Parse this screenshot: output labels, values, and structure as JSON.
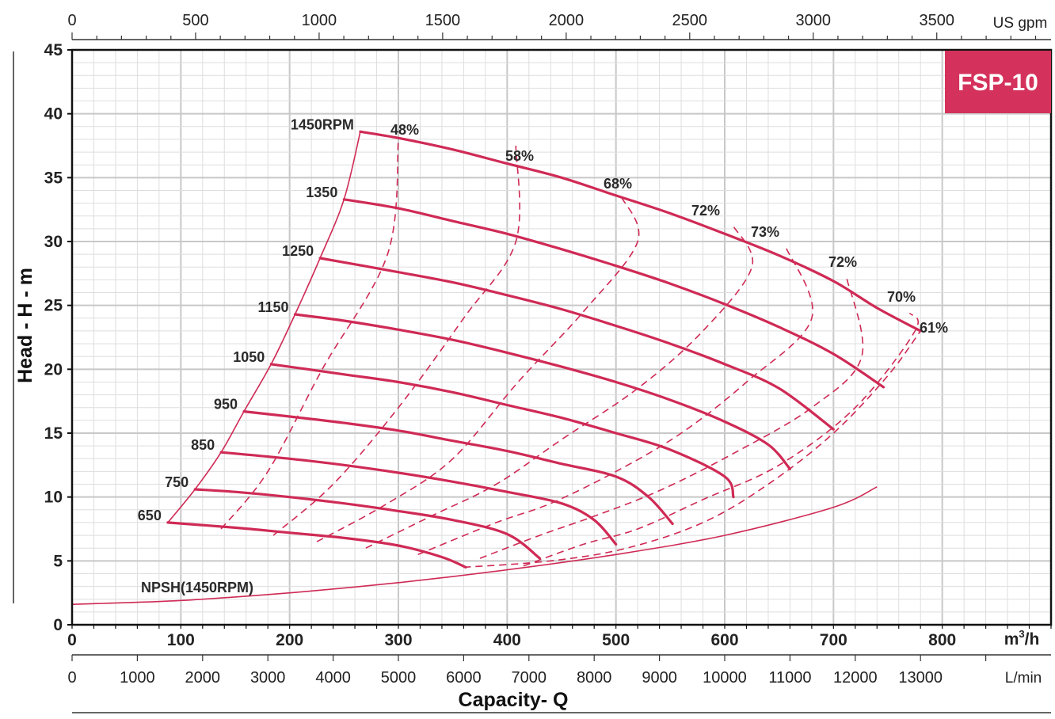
{
  "model_badge": "FSP-10",
  "colors": {
    "curve": "#cf2a55",
    "badge_bg": "#d4325c",
    "badge_text": "#ffffff",
    "grid_major": "#c8c8c8",
    "grid_minor": "#dedede",
    "frame": "#111111"
  },
  "chart_data": {
    "type": "line",
    "title": "",
    "ylabel": "Head - H - m",
    "xlabel": "Capacity- Q",
    "x_unit": "m³/h",
    "x_unit_base": "m",
    "x_unit_sup": "3",
    "x_unit_tail": "/h",
    "x_unit_top": "US gpm",
    "x_unit_bottom": "L/min",
    "xlim": [
      0,
      900
    ],
    "ylim": [
      0,
      45
    ],
    "y_ticks": [
      "0",
      "5",
      "10",
      "15",
      "20",
      "25",
      "30",
      "35",
      "40",
      "45"
    ],
    "x_ticks_m3h": [
      "0",
      "100",
      "200",
      "300",
      "400",
      "500",
      "600",
      "700",
      "800"
    ],
    "x_ticks_usgpm": [
      "0",
      "500",
      "1000",
      "1500",
      "2000",
      "2500",
      "3000",
      "3500"
    ],
    "x_ticks_lmin": [
      "0",
      "1000",
      "2000",
      "3000",
      "4000",
      "5000",
      "6000",
      "7000",
      "8000",
      "9000",
      "10000",
      "11000",
      "12000",
      "13000"
    ],
    "speed_curves": [
      {
        "label": "1450RPM",
        "rpm": 1450,
        "points": [
          [
            265,
            38.6
          ],
          [
            300,
            38.1
          ],
          [
            350,
            37.2
          ],
          [
            400,
            36.1
          ],
          [
            450,
            35.0
          ],
          [
            500,
            33.6
          ],
          [
            550,
            32.2
          ],
          [
            600,
            30.6
          ],
          [
            650,
            28.9
          ],
          [
            700,
            26.9
          ],
          [
            740,
            24.8
          ],
          [
            780,
            23.0
          ]
        ]
      },
      {
        "label": "1350",
        "rpm": 1350,
        "points": [
          [
            250,
            33.3
          ],
          [
            300,
            32.6
          ],
          [
            350,
            31.6
          ],
          [
            400,
            30.6
          ],
          [
            450,
            29.4
          ],
          [
            500,
            28.1
          ],
          [
            550,
            26.7
          ],
          [
            600,
            25.1
          ],
          [
            650,
            23.3
          ],
          [
            700,
            21.2
          ],
          [
            746,
            18.6
          ]
        ]
      },
      {
        "label": "1250",
        "rpm": 1250,
        "points": [
          [
            228,
            28.7
          ],
          [
            300,
            27.6
          ],
          [
            350,
            26.8
          ],
          [
            400,
            25.8
          ],
          [
            450,
            24.7
          ],
          [
            500,
            23.4
          ],
          [
            550,
            22.0
          ],
          [
            600,
            20.4
          ],
          [
            650,
            18.5
          ],
          [
            700,
            15.3
          ]
        ]
      },
      {
        "label": "1150",
        "rpm": 1150,
        "points": [
          [
            205,
            24.3
          ],
          [
            250,
            23.8
          ],
          [
            300,
            23.1
          ],
          [
            350,
            22.3
          ],
          [
            400,
            21.3
          ],
          [
            450,
            20.2
          ],
          [
            500,
            19.0
          ],
          [
            550,
            17.6
          ],
          [
            600,
            15.9
          ],
          [
            640,
            14.1
          ],
          [
            660,
            12.2
          ]
        ]
      },
      {
        "label": "1050",
        "rpm": 1050,
        "points": [
          [
            183,
            20.4
          ],
          [
            250,
            19.6
          ],
          [
            300,
            19.0
          ],
          [
            350,
            18.2
          ],
          [
            400,
            17.2
          ],
          [
            450,
            16.2
          ],
          [
            500,
            15.0
          ],
          [
            550,
            13.7
          ],
          [
            600,
            11.6
          ],
          [
            608,
            10.0
          ]
        ]
      },
      {
        "label": "950",
        "rpm": 950,
        "points": [
          [
            158,
            16.7
          ],
          [
            200,
            16.3
          ],
          [
            250,
            15.8
          ],
          [
            300,
            15.2
          ],
          [
            350,
            14.4
          ],
          [
            400,
            13.6
          ],
          [
            450,
            12.6
          ],
          [
            500,
            11.6
          ],
          [
            530,
            10.0
          ],
          [
            552,
            7.9
          ]
        ]
      },
      {
        "label": "850",
        "rpm": 850,
        "points": [
          [
            137,
            13.5
          ],
          [
            200,
            13.0
          ],
          [
            250,
            12.5
          ],
          [
            300,
            11.9
          ],
          [
            350,
            11.2
          ],
          [
            400,
            10.4
          ],
          [
            450,
            9.5
          ],
          [
            480,
            8.2
          ],
          [
            500,
            6.3
          ]
        ]
      },
      {
        "label": "750",
        "rpm": 750,
        "points": [
          [
            113,
            10.6
          ],
          [
            150,
            10.4
          ],
          [
            200,
            10.0
          ],
          [
            250,
            9.5
          ],
          [
            300,
            8.9
          ],
          [
            350,
            8.2
          ],
          [
            400,
            7.1
          ],
          [
            430,
            5.2
          ]
        ]
      },
      {
        "label": "650",
        "rpm": 650,
        "points": [
          [
            88,
            8.0
          ],
          [
            150,
            7.6
          ],
          [
            200,
            7.2
          ],
          [
            250,
            6.8
          ],
          [
            300,
            6.2
          ],
          [
            340,
            5.3
          ],
          [
            362,
            4.5
          ]
        ]
      }
    ],
    "efficiency_lines": [
      {
        "label": "48%",
        "points": [
          [
            137,
            7.5
          ],
          [
            180,
            12.0
          ],
          [
            230,
            20.0
          ],
          [
            290,
            29.0
          ],
          [
            300,
            38.0
          ]
        ]
      },
      {
        "label": "58%",
        "points": [
          [
            185,
            7.0
          ],
          [
            240,
            11.0
          ],
          [
            300,
            17.0
          ],
          [
            360,
            24.0
          ],
          [
            408,
            30.0
          ],
          [
            408,
            37.5
          ]
        ]
      },
      {
        "label": "68%",
        "points": [
          [
            225,
            6.5
          ],
          [
            290,
            9.5
          ],
          [
            350,
            13.0
          ],
          [
            410,
            19.0
          ],
          [
            470,
            24.5
          ],
          [
            520,
            30.0
          ],
          [
            505,
            33.5
          ]
        ]
      },
      {
        "label": "72%",
        "points": [
          [
            270,
            6.0
          ],
          [
            330,
            8.5
          ],
          [
            390,
            11.0
          ],
          [
            450,
            14.5
          ],
          [
            520,
            18.5
          ],
          [
            580,
            23.0
          ],
          [
            625,
            28.0
          ],
          [
            608,
            31.2
          ]
        ]
      },
      {
        "label": "73%",
        "points": [
          [
            318,
            5.5
          ],
          [
            390,
            8.0
          ],
          [
            440,
            9.5
          ],
          [
            500,
            12.0
          ],
          [
            560,
            15.0
          ],
          [
            620,
            19.0
          ],
          [
            680,
            24.0
          ],
          [
            656,
            29.6
          ]
        ]
      },
      {
        "label": "72%",
        "points": [
          [
            375,
            5.2
          ],
          [
            430,
            7.0
          ],
          [
            480,
            8.5
          ],
          [
            540,
            10.5
          ],
          [
            610,
            13.5
          ],
          [
            680,
            17.0
          ],
          [
            726,
            21.0
          ],
          [
            712,
            27.2
          ]
        ]
      },
      {
        "label": "70%",
        "points": [
          [
            415,
            4.6
          ],
          [
            470,
            6.3
          ],
          [
            520,
            7.5
          ],
          [
            580,
            9.8
          ],
          [
            650,
            12.5
          ],
          [
            720,
            17.0
          ],
          [
            775,
            23.0
          ],
          [
            770,
            24.4
          ]
        ]
      },
      {
        "label": "61%",
        "points": [
          [
            360,
            4.5
          ],
          [
            440,
            5.0
          ],
          [
            510,
            6.0
          ],
          [
            580,
            8.0
          ],
          [
            640,
            11.0
          ],
          [
            700,
            15.0
          ],
          [
            750,
            19.5
          ],
          [
            780,
            23.0
          ]
        ]
      }
    ],
    "npsh_curve": {
      "label": "NPSH(1450RPM)",
      "points": [
        [
          0,
          1.6
        ],
        [
          100,
          1.9
        ],
        [
          200,
          2.5
        ],
        [
          300,
          3.3
        ],
        [
          400,
          4.3
        ],
        [
          500,
          5.5
        ],
        [
          600,
          7.0
        ],
        [
          700,
          9.2
        ],
        [
          740,
          10.8
        ]
      ]
    }
  }
}
